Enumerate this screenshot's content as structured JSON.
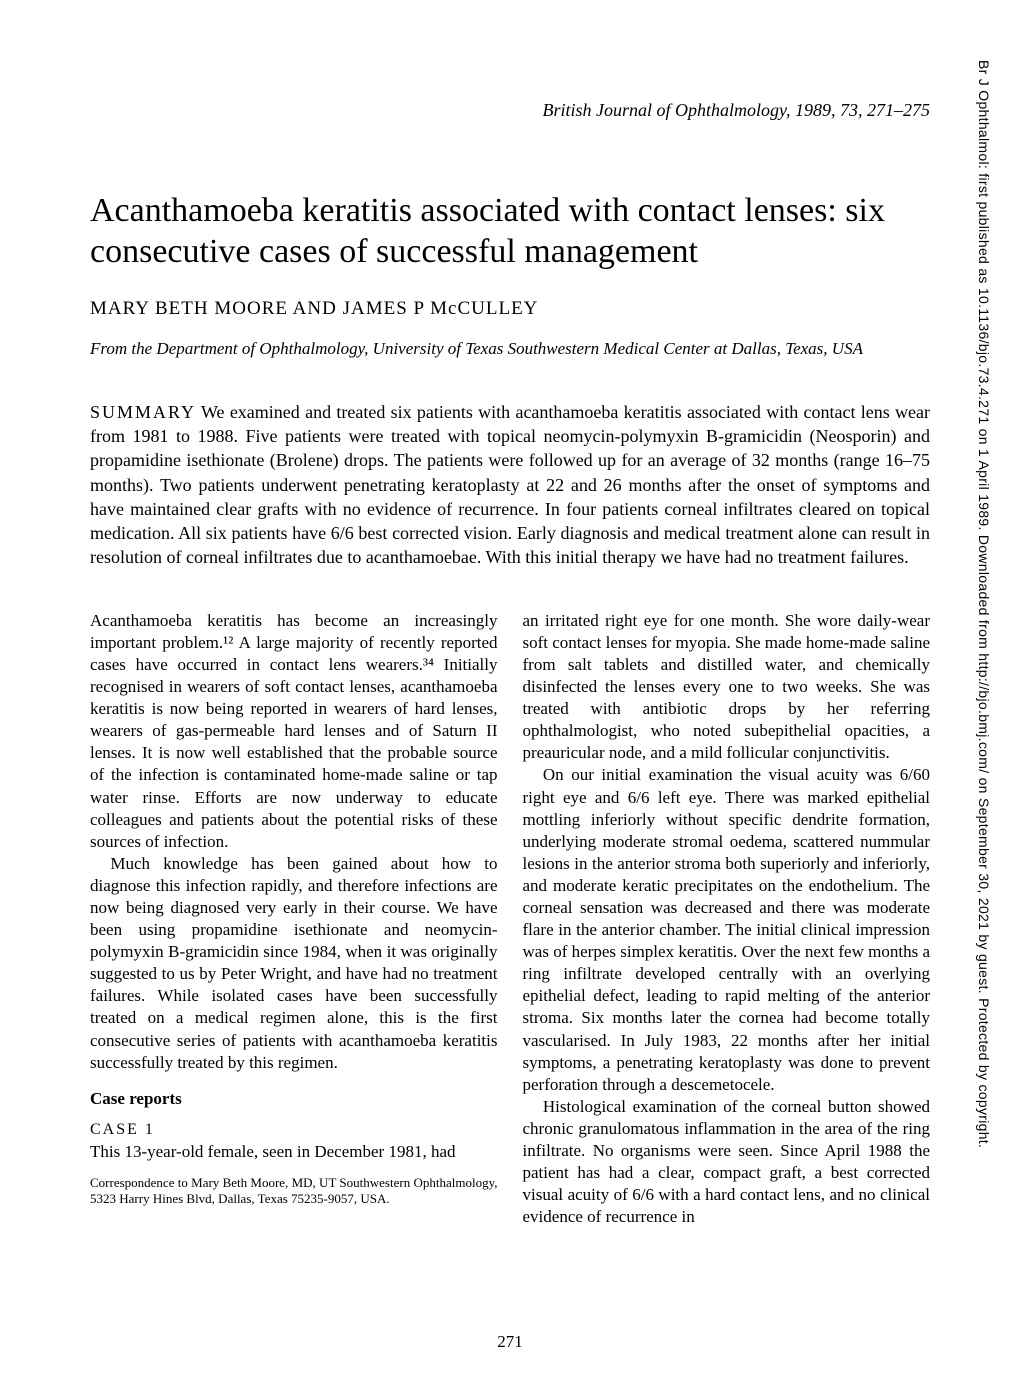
{
  "citation": "British Journal of Ophthalmology, 1989, 73, 271–275",
  "title": "Acanthamoeba keratitis associated with contact lenses: six consecutive cases of successful management",
  "authors": "MARY BETH MOORE AND JAMES P McCULLEY",
  "affiliation": "From the Department of Ophthalmology, University of Texas Southwestern Medical Center at Dallas, Texas, USA",
  "summary_label": "SUMMARY",
  "summary_text": " We examined and treated six patients with acanthamoeba keratitis associated with contact lens wear from 1981 to 1988. Five patients were treated with topical neomycin-polymyxin B-gramicidin (Neosporin) and propamidine isethionate (Brolene) drops. The patients were followed up for an average of 32 months (range 16–75 months). Two patients underwent penetrating keratoplasty at 22 and 26 months after the onset of symptoms and have maintained clear grafts with no evidence of recurrence. In four patients corneal infiltrates cleared on topical medication. All six patients have 6/6 best corrected vision. Early diagnosis and medical treatment alone can result in resolution of corneal infiltrates due to acanthamoebae. With this initial therapy we have had no treatment failures.",
  "col1_p1": "Acanthamoeba keratitis has become an increasingly important problem.¹² A large majority of recently reported cases have occurred in contact lens wearers.³⁴ Initially recognised in wearers of soft contact lenses, acanthamoeba keratitis is now being reported in wearers of hard lenses, wearers of gas-permeable hard lenses and of Saturn II lenses. It is now well established that the probable source of the infection is contaminated home-made saline or tap water rinse. Efforts are now underway to educate colleagues and patients about the potential risks of these sources of infection.",
  "col1_p2": "Much knowledge has been gained about how to diagnose this infection rapidly, and therefore infections are now being diagnosed very early in their course. We have been using propamidine isethionate and neomycin-polymyxin B-gramicidin since 1984, when it was originally suggested to us by Peter Wright, and have had no treatment failures. While isolated cases have been successfully treated on a medical regimen alone, this is the first consecutive series of patients with acanthamoeba keratitis successfully treated by this regimen.",
  "case_reports_heading": "Case reports",
  "case1_label": "CASE 1",
  "col1_p3": "This 13-year-old female, seen in December 1981, had",
  "correspondence": "Correspondence to Mary Beth Moore, MD, UT Southwestern Ophthalmology, 5323 Harry Hines Blvd, Dallas, Texas 75235-9057, USA.",
  "col2_p1": "an irritated right eye for one month. She wore daily-wear soft contact lenses for myopia. She made home-made saline from salt tablets and distilled water, and chemically disinfected the lenses every one to two weeks. She was treated with antibiotic drops by her referring ophthalmologist, who noted subepithelial opacities, a preauricular node, and a mild follicular conjunctivitis.",
  "col2_p2": "On our initial examination the visual acuity was 6/60 right eye and 6/6 left eye. There was marked epithelial mottling inferiorly without specific dendrite formation, underlying moderate stromal oedema, scattered nummular lesions in the anterior stroma both superiorly and inferiorly, and moderate keratic precipitates on the endothelium. The corneal sensation was decreased and there was moderate flare in the anterior chamber. The initial clinical impression was of herpes simplex keratitis. Over the next few months a ring infiltrate developed centrally with an overlying epithelial defect, leading to rapid melting of the anterior stroma. Six months later the cornea had become totally vascularised. In July 1983, 22 months after her initial symptoms, a penetrating keratoplasty was done to prevent perforation through a descemetocele.",
  "col2_p3": "Histological examination of the corneal button showed chronic granulomatous inflammation in the area of the ring infiltrate. No organisms were seen. Since April 1988 the patient has had a clear, compact graft, a best corrected visual acuity of 6/6 with a hard contact lens, and no clinical evidence of recurrence in",
  "page_number": "271",
  "sidebar": "Br J Ophthalmol: first published as 10.1136/bjo.73.4.271 on 1 April 1989. Downloaded from http://bjo.bmj.com/ on September 30, 2021 by guest. Protected by copyright."
}
